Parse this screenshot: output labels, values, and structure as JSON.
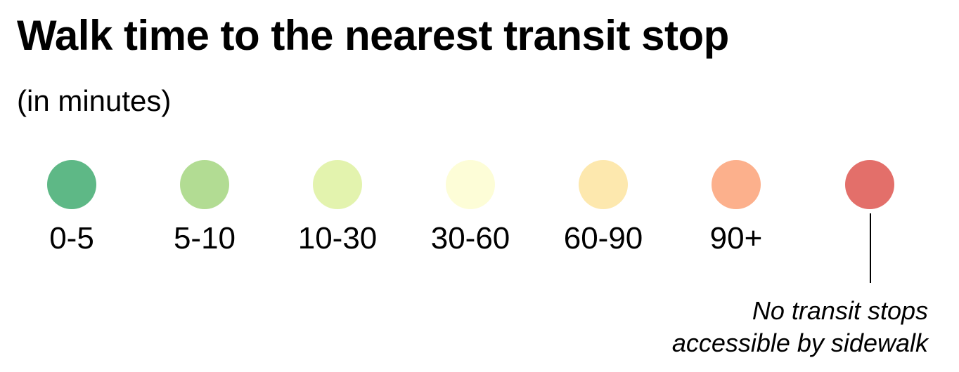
{
  "title": "Walk time to the nearest transit stop",
  "subtitle": "(in minutes)",
  "legend": {
    "items": [
      {
        "label": "0-5",
        "color": "#5eb886"
      },
      {
        "label": "5-10",
        "color": "#b2dc93"
      },
      {
        "label": "10-30",
        "color": "#e3f3ae"
      },
      {
        "label": "30-60",
        "color": "#fdfdd7"
      },
      {
        "label": "60-90",
        "color": "#fde8ae"
      },
      {
        "label": "90+",
        "color": "#fcb08c"
      },
      {
        "label": "",
        "color": "#e36f6a"
      }
    ],
    "annotation": {
      "line1": "No transit stops",
      "line2": "accessible by sidewalk"
    }
  }
}
